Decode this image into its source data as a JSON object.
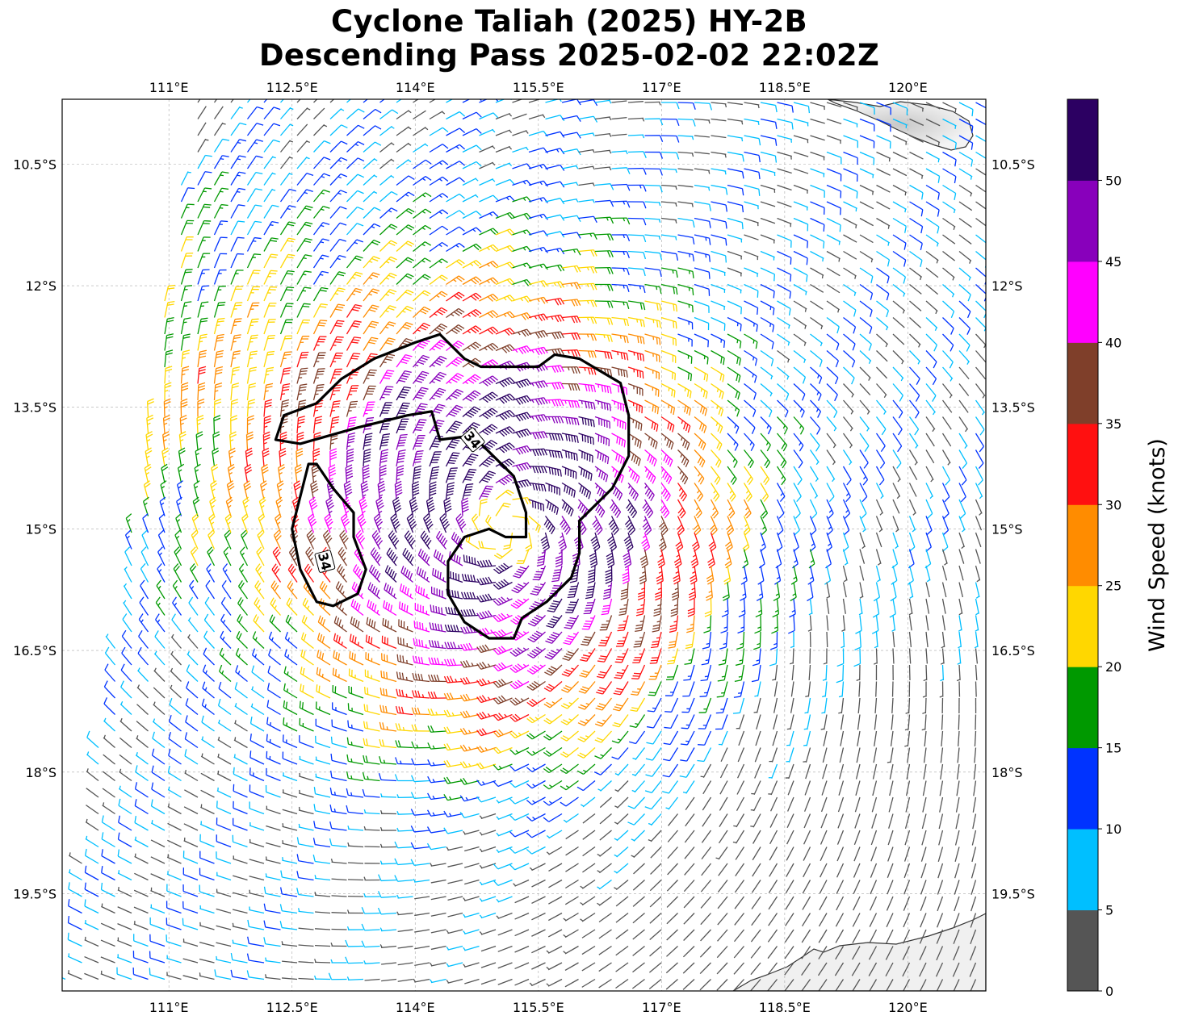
{
  "title": {
    "line1": "Cyclone Taliah (2025) HY-2B",
    "line2": "Descending Pass 2025-02-02 22:02Z"
  },
  "map": {
    "lon_range": [
      109.7,
      120.95
    ],
    "lat_range": [
      -20.7,
      -9.7
    ],
    "lon_ticks": [
      {
        "value": 111.0,
        "label": "111°E"
      },
      {
        "value": 112.5,
        "label": "112.5°E"
      },
      {
        "value": 114.0,
        "label": "114°E"
      },
      {
        "value": 115.5,
        "label": "115.5°E"
      },
      {
        "value": 117.0,
        "label": "117°E"
      },
      {
        "value": 118.5,
        "label": "118.5°E"
      },
      {
        "value": 120.0,
        "label": "120°E"
      }
    ],
    "lat_ticks": [
      {
        "value": -10.5,
        "label": "10.5°S"
      },
      {
        "value": -12.0,
        "label": "12°S"
      },
      {
        "value": -13.5,
        "label": "13.5°S"
      },
      {
        "value": -15.0,
        "label": "15°S"
      },
      {
        "value": -16.5,
        "label": "16.5°S"
      },
      {
        "value": -18.0,
        "label": "18°S"
      },
      {
        "value": -19.5,
        "label": "19.5°S"
      }
    ],
    "gridlines": true,
    "storm_center": {
      "lon": 115.1,
      "lat": -15.0
    },
    "swath_west_edge": [
      [
        111.3,
        -9.7
      ],
      [
        109.7,
        -20.7
      ]
    ],
    "contour": {
      "level_label": "34",
      "contour_labels": [
        {
          "lon": 114.7,
          "lat": -13.9
        },
        {
          "lon": 112.9,
          "lat": -15.4
        }
      ],
      "outer": [
        [
          114.3,
          -12.6
        ],
        [
          114.0,
          -12.7
        ],
        [
          113.5,
          -12.9
        ],
        [
          113.1,
          -13.15
        ],
        [
          112.8,
          -13.45
        ],
        [
          112.4,
          -13.6
        ],
        [
          112.3,
          -13.9
        ],
        [
          112.6,
          -13.95
        ],
        [
          113.3,
          -13.75
        ],
        [
          113.9,
          -13.6
        ],
        [
          114.2,
          -13.55
        ],
        [
          114.3,
          -13.9
        ],
        [
          114.7,
          -13.85
        ],
        [
          115.2,
          -14.35
        ],
        [
          115.35,
          -14.8
        ],
        [
          115.35,
          -15.1
        ],
        [
          115.1,
          -15.1
        ],
        [
          114.9,
          -15.0
        ],
        [
          114.6,
          -15.1
        ],
        [
          114.4,
          -15.4
        ],
        [
          114.4,
          -15.8
        ],
        [
          114.6,
          -16.15
        ],
        [
          114.9,
          -16.35
        ],
        [
          115.2,
          -16.35
        ],
        [
          115.3,
          -16.1
        ],
        [
          115.6,
          -15.9
        ],
        [
          115.9,
          -15.6
        ],
        [
          116.0,
          -15.3
        ],
        [
          116.0,
          -14.9
        ],
        [
          116.4,
          -14.5
        ],
        [
          116.6,
          -14.1
        ],
        [
          116.6,
          -13.6
        ],
        [
          116.5,
          -13.2
        ],
        [
          116.0,
          -12.9
        ],
        [
          115.7,
          -12.85
        ],
        [
          115.5,
          -13.0
        ],
        [
          115.1,
          -13.0
        ],
        [
          114.8,
          -13.0
        ],
        [
          114.6,
          -12.9
        ]
      ],
      "west": [
        [
          112.7,
          -14.2
        ],
        [
          112.6,
          -14.6
        ],
        [
          112.5,
          -15.0
        ],
        [
          112.6,
          -15.5
        ],
        [
          112.8,
          -15.9
        ],
        [
          113.0,
          -15.95
        ],
        [
          113.3,
          -15.8
        ],
        [
          113.4,
          -15.5
        ],
        [
          113.25,
          -15.1
        ],
        [
          113.25,
          -14.8
        ],
        [
          113.0,
          -14.5
        ],
        [
          112.8,
          -14.2
        ]
      ]
    }
  },
  "legend": {
    "colorbar_title": "Wind Speed (knots)",
    "bins": [
      {
        "min": 0,
        "max": 5,
        "color": "#555555"
      },
      {
        "min": 5,
        "max": 10,
        "color": "#00bfff"
      },
      {
        "min": 10,
        "max": 15,
        "color": "#0033ff"
      },
      {
        "min": 15,
        "max": 20,
        "color": "#009900"
      },
      {
        "min": 20,
        "max": 25,
        "color": "#ffd700"
      },
      {
        "min": 25,
        "max": 30,
        "color": "#ff8c00"
      },
      {
        "min": 30,
        "max": 35,
        "color": "#ff1010"
      },
      {
        "min": 35,
        "max": 40,
        "color": "#7f3f2a"
      },
      {
        "min": 40,
        "max": 45,
        "color": "#ff00ff"
      },
      {
        "min": 45,
        "max": 50,
        "color": "#8800bb"
      },
      {
        "min": 50,
        "max": 55,
        "color": "#2c0062"
      }
    ],
    "ticks": [
      "0",
      "5",
      "10",
      "15",
      "20",
      "25",
      "30",
      "35",
      "40",
      "45",
      "50"
    ]
  }
}
